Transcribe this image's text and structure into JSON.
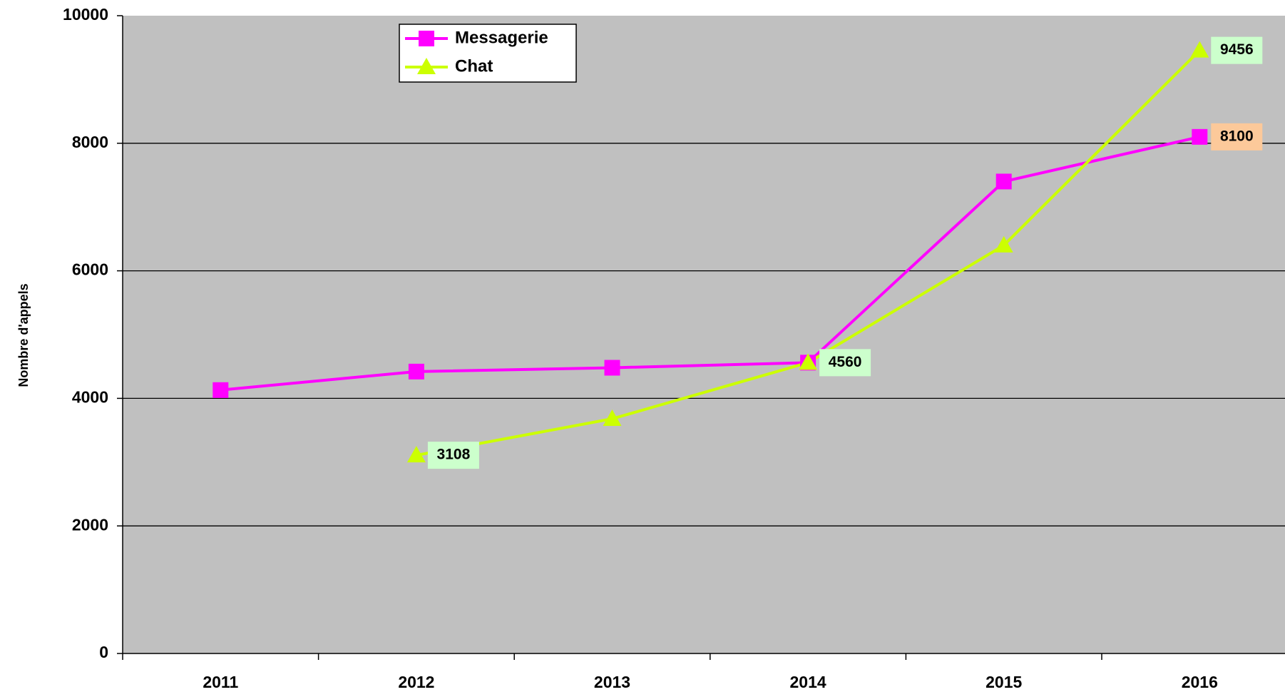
{
  "chart_data": {
    "type": "line",
    "y_label": "Nombre d'appels",
    "categories": [
      "2011",
      "2012",
      "2013",
      "2014",
      "2015",
      "2016"
    ],
    "series": [
      {
        "name": "Messagerie",
        "color": "#ff00ff",
        "marker": "square",
        "label_color": "#fcc99a",
        "values": [
          4130,
          4420,
          4480,
          4560,
          7400,
          8100
        ],
        "value_labels": [
          null,
          null,
          null,
          null,
          null,
          "8100"
        ]
      },
      {
        "name": "Chat",
        "color": "#ccff00",
        "marker": "triangle",
        "label_color": "#ccffcc",
        "values": [
          null,
          3108,
          3680,
          4560,
          6400,
          9456
        ],
        "value_labels": [
          null,
          "3108",
          null,
          "4560",
          null,
          "9456"
        ]
      }
    ],
    "ylim": [
      0,
      10000
    ],
    "yticks": [
      0,
      2000,
      4000,
      6000,
      8000,
      10000
    ],
    "grid": true,
    "plot_background": "#c0c0c0",
    "legend": "upper-left"
  }
}
